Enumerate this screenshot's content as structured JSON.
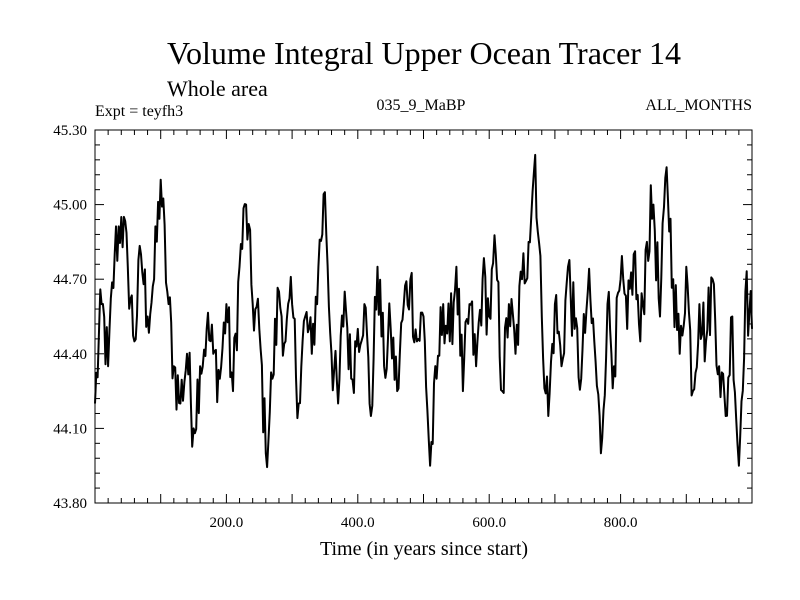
{
  "chart_data": {
    "type": "line",
    "title": "Volume Integral Upper Ocean Tracer 14",
    "subtitle": "Whole area",
    "expt_label": "Expt = teyfh3",
    "run_label": "035_9_MaBP",
    "months_label": "ALL_MONTHS",
    "xlabel": "Time (in years since start)",
    "ylabel": "",
    "xlim": [
      0,
      1000
    ],
    "ylim": [
      43.8,
      45.3
    ],
    "x_ticks": [
      200,
      400,
      600,
      800
    ],
    "x_tick_labels": [
      "200.0",
      "400.0",
      "600.0",
      "800.0"
    ],
    "y_ticks": [
      43.8,
      44.1,
      44.4,
      44.7,
      45.0,
      45.3
    ],
    "y_tick_labels": [
      "43.80",
      "44.10",
      "44.40",
      "44.70",
      "45.00",
      "45.30"
    ],
    "series": [
      {
        "name": "Tracer 14",
        "color": "#000000",
        "x": [
          0,
          10,
          20,
          30,
          40,
          50,
          60,
          70,
          80,
          90,
          100,
          110,
          120,
          130,
          140,
          150,
          160,
          170,
          180,
          190,
          200,
          210,
          220,
          230,
          240,
          250,
          260,
          270,
          280,
          290,
          300,
          310,
          320,
          330,
          340,
          350,
          360,
          370,
          380,
          390,
          400,
          410,
          420,
          430,
          440,
          450,
          460,
          470,
          480,
          490,
          500,
          510,
          520,
          530,
          540,
          550,
          560,
          570,
          580,
          590,
          600,
          610,
          620,
          630,
          640,
          650,
          660,
          670,
          680,
          690,
          700,
          710,
          720,
          730,
          740,
          750,
          760,
          770,
          780,
          790,
          800,
          810,
          820,
          830,
          840,
          850,
          860,
          870,
          880,
          890,
          900,
          910,
          920,
          930,
          940,
          950,
          960,
          970,
          980,
          990,
          1000
        ],
        "values": [
          44.2,
          44.6,
          44.35,
          44.8,
          44.95,
          44.75,
          44.45,
          44.8,
          44.55,
          44.7,
          45.1,
          44.65,
          44.35,
          44.2,
          44.4,
          44.1,
          44.35,
          44.5,
          44.4,
          44.3,
          44.6,
          44.25,
          44.75,
          45.0,
          44.6,
          44.5,
          44.0,
          44.3,
          44.65,
          44.45,
          44.6,
          44.2,
          44.55,
          44.4,
          44.75,
          45.05,
          44.4,
          44.2,
          44.65,
          44.3,
          44.5,
          44.6,
          44.15,
          44.75,
          44.35,
          44.5,
          44.25,
          44.6,
          44.7,
          44.45,
          44.55,
          43.95,
          44.3,
          44.6,
          44.45,
          44.75,
          44.25,
          44.6,
          44.35,
          44.7,
          44.55,
          44.8,
          44.25,
          44.6,
          44.4,
          44.7,
          44.85,
          45.2,
          44.55,
          44.15,
          44.6,
          44.35,
          44.75,
          44.5,
          44.3,
          44.65,
          44.45,
          44.0,
          44.6,
          44.35,
          44.7,
          44.5,
          44.8,
          44.45,
          44.85,
          45.0,
          44.55,
          45.15,
          44.7,
          44.4,
          44.75,
          44.25,
          44.6,
          44.45,
          44.7,
          44.35,
          44.15,
          44.55,
          43.95,
          44.65,
          44.5
        ]
      }
    ]
  }
}
